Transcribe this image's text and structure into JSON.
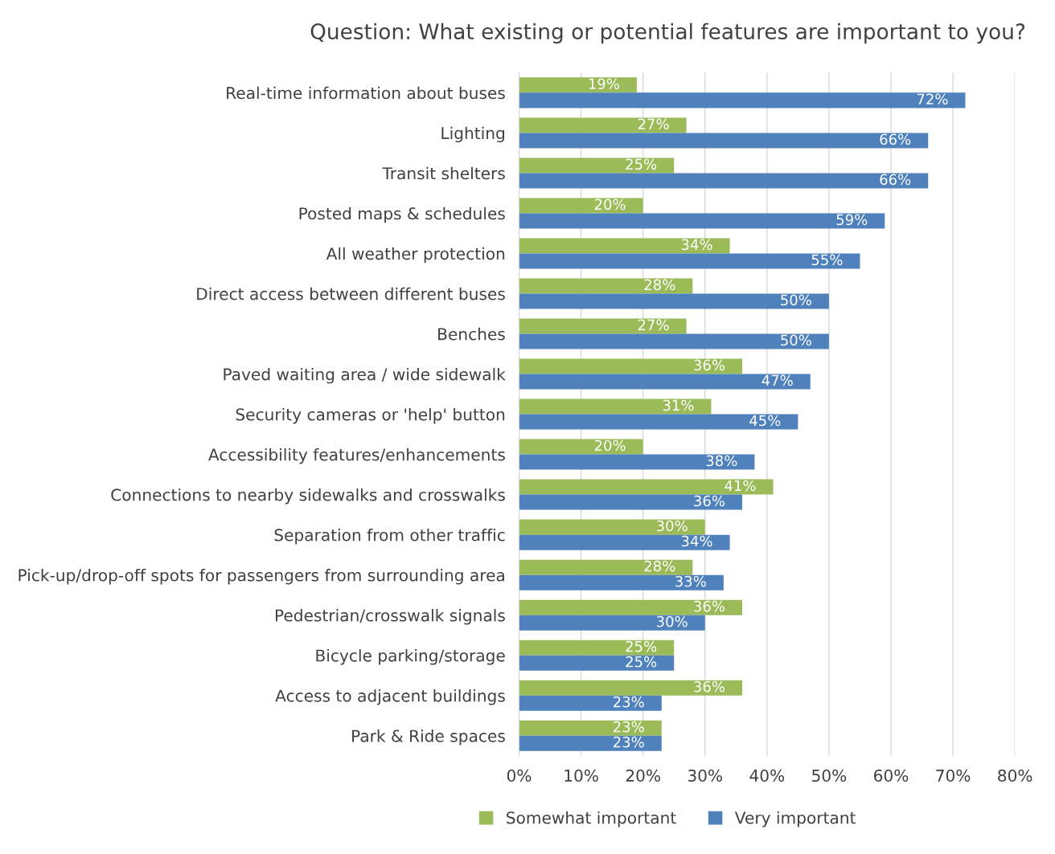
{
  "chart_data": {
    "type": "bar",
    "orientation": "horizontal",
    "title": "Question: What existing or potential features are important to you?",
    "categories": [
      "Real-time information about buses",
      "Lighting",
      "Transit shelters",
      "Posted maps & schedules",
      "All weather protection",
      "Direct access between different buses",
      "Benches",
      "Paved waiting area / wide sidewalk",
      "Security cameras or 'help' button",
      "Accessibility features/enhancements",
      "Connections to nearby sidewalks and crosswalks",
      "Separation from other traffic",
      "Pick-up/drop-off spots for passengers from surrounding area",
      "Pedestrian/crosswalk signals",
      "Bicycle parking/storage",
      "Access to adjacent buildings",
      "Park & Ride spaces"
    ],
    "series": [
      {
        "name": "Somewhat important",
        "color": "#9bbb59",
        "values": [
          19,
          27,
          25,
          20,
          34,
          28,
          27,
          36,
          31,
          20,
          41,
          30,
          28,
          36,
          25,
          36,
          23
        ],
        "value_labels": [
          "19%",
          "27%",
          "25%",
          "20%",
          "34%",
          "28%",
          "27%",
          "36%",
          "31%",
          "20%",
          "41%",
          "30%",
          "28%",
          "36%",
          "25%",
          "36%",
          "23%"
        ]
      },
      {
        "name": "Very important",
        "color": "#4f81bd",
        "values": [
          72,
          66,
          66,
          59,
          55,
          50,
          50,
          47,
          45,
          38,
          36,
          34,
          33,
          30,
          25,
          23,
          23
        ],
        "value_labels": [
          "72%",
          "66%",
          "66%",
          "59%",
          "55%",
          "50%",
          "50%",
          "47%",
          "45%",
          "38%",
          "36%",
          "34%",
          "33%",
          "30%",
          "25%",
          "23%",
          "23%"
        ]
      }
    ],
    "xlim": [
      0,
      80
    ],
    "xticks": [
      {
        "value": 0,
        "label": "0%"
      },
      {
        "value": 10,
        "label": "10%"
      },
      {
        "value": 20,
        "label": "20%"
      },
      {
        "value": 30,
        "label": "30%"
      },
      {
        "value": 40,
        "label": "40%"
      },
      {
        "value": 50,
        "label": "50%"
      },
      {
        "value": 60,
        "label": "60%"
      },
      {
        "value": 70,
        "label": "70%"
      },
      {
        "value": 80,
        "label": "80%"
      }
    ],
    "grid": "x",
    "legend": "bottom"
  }
}
